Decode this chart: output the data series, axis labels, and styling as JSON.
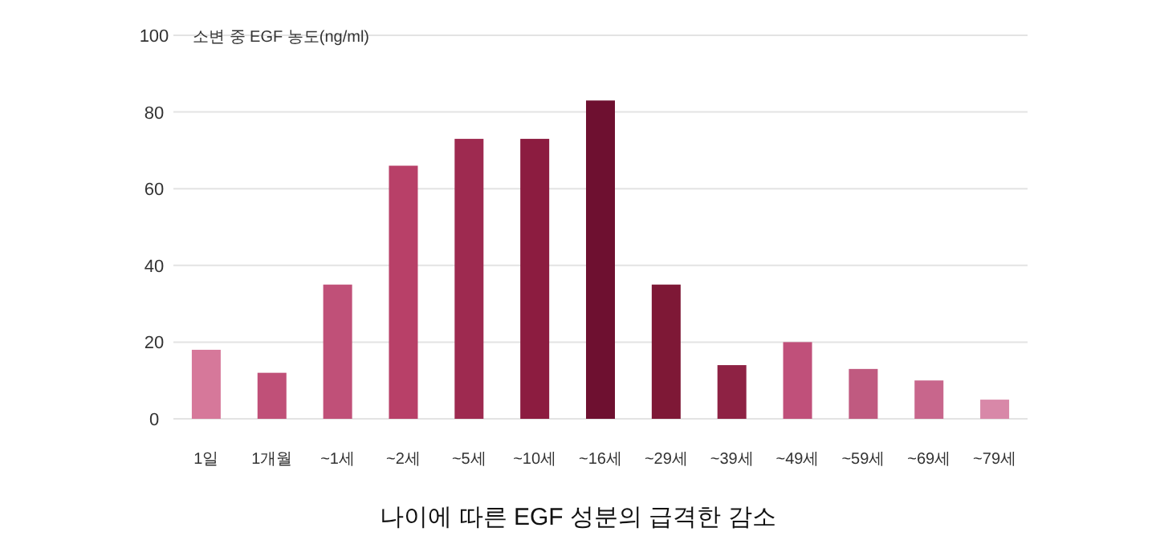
{
  "chart_data": {
    "type": "bar",
    "title": "나이에 따른 EGF 성분의 급격한 감소",
    "ylabel": "소변 중 EGF 농도(ng/ml)",
    "categories": [
      "1일",
      "1개월",
      "~1세",
      "~2세",
      "~5세",
      "~10세",
      "~16세",
      "~29세",
      "~39세",
      "~49세",
      "~59세",
      "~69세",
      "~79세"
    ],
    "values": [
      18,
      12,
      35,
      66,
      73,
      73,
      83,
      35,
      14,
      20,
      13,
      10,
      5
    ],
    "colors": [
      "#d6789a",
      "#c05078",
      "#c05078",
      "#b84068",
      "#9e2a50",
      "#8c1c40",
      "#6e1030",
      "#7e1836",
      "#8e2244",
      "#c0507a",
      "#c05a80",
      "#c8668c",
      "#d888a8"
    ],
    "ylim": [
      0,
      100
    ],
    "yticks": [
      0,
      20,
      40,
      60,
      80,
      100
    ],
    "grid": "y"
  }
}
